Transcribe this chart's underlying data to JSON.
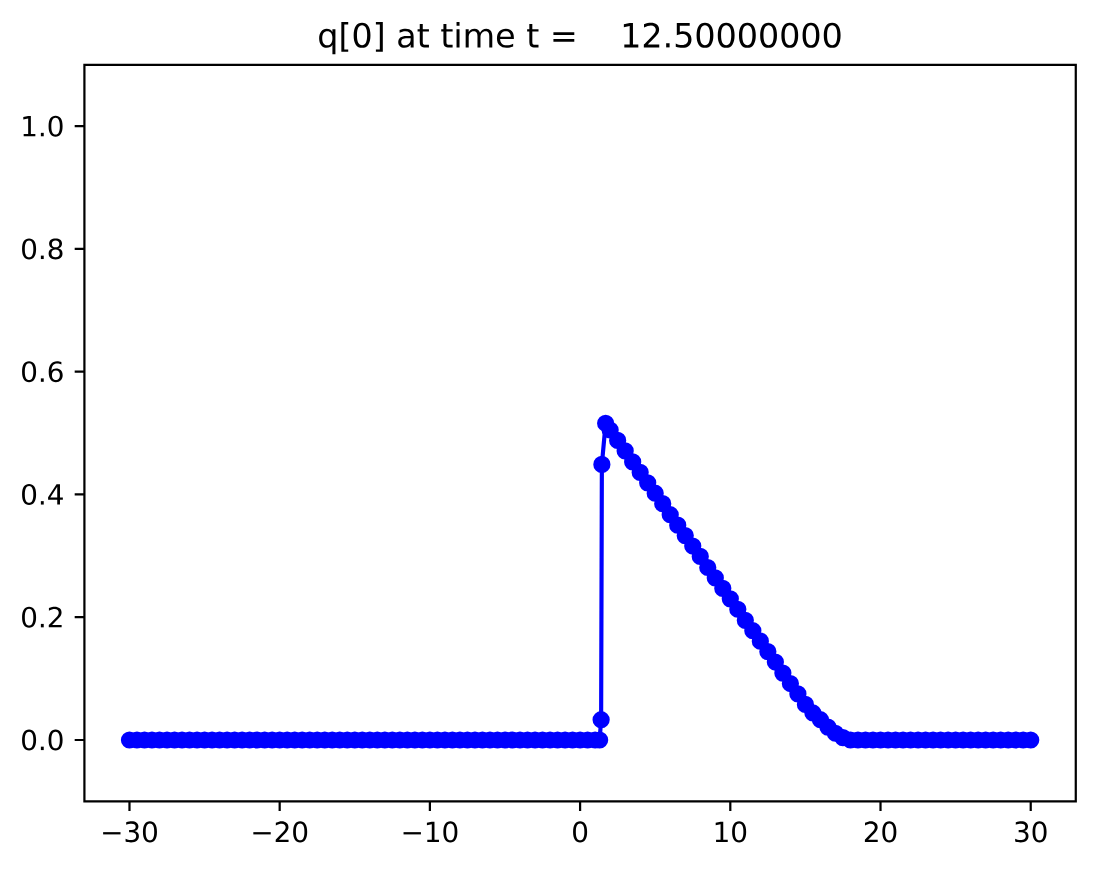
{
  "chart_data": {
    "type": "line",
    "title": "q[0] at time t =    12.50000000",
    "x": [
      -30,
      -29.5,
      -29,
      -28.5,
      -28,
      -27.5,
      -27,
      -26.5,
      -26,
      -25.5,
      -25,
      -24.5,
      -24,
      -23.5,
      -23,
      -22.5,
      -22,
      -21.5,
      -21,
      -20.5,
      -20,
      -19.5,
      -19,
      -18.5,
      -18,
      -17.5,
      -17,
      -16.5,
      -16,
      -15.5,
      -15,
      -14.5,
      -14,
      -13.5,
      -13,
      -12.5,
      -12,
      -11.5,
      -11,
      -10.5,
      -10,
      -9.5,
      -9,
      -8.5,
      -8,
      -7.5,
      -7,
      -6.5,
      -6,
      -5.5,
      -5,
      -4.5,
      -4,
      -3.5,
      -3,
      -2.5,
      -2,
      -1.5,
      -1,
      -0.5,
      0,
      0.5,
      1,
      1.3,
      1.4,
      1.45,
      1.7,
      2,
      2.5,
      3,
      3.5,
      4,
      4.5,
      5,
      5.5,
      6,
      6.5,
      7,
      7.5,
      8,
      8.5,
      9,
      9.5,
      10,
      10.5,
      11,
      11.5,
      12,
      12.5,
      13,
      13.5,
      14,
      14.5,
      15,
      15.5,
      16,
      16.5,
      17,
      17.5,
      18,
      18.5,
      19,
      19.5,
      20,
      20.5,
      21,
      21.5,
      22,
      22.5,
      23,
      23.5,
      24,
      24.5,
      25,
      25.5,
      26,
      26.5,
      27,
      27.5,
      28,
      28.5,
      29,
      29.5,
      30
    ],
    "series": [
      {
        "color": "#0000ff",
        "values": [
          0,
          0,
          0,
          0,
          0,
          0,
          0,
          0,
          0,
          0,
          0,
          0,
          0,
          0,
          0,
          0,
          0,
          0,
          0,
          0,
          0,
          0,
          0,
          0,
          0,
          0,
          0,
          0,
          0,
          0,
          0,
          0,
          0,
          0,
          0,
          0,
          0,
          0,
          0,
          0,
          0,
          0,
          0,
          0,
          0,
          0,
          0,
          0,
          0,
          0,
          0,
          0,
          0,
          0,
          0,
          0,
          0,
          0,
          0,
          0,
          0,
          0,
          0,
          0,
          0.033,
          0.449,
          0.516,
          0.505,
          0.488,
          0.471,
          0.453,
          0.436,
          0.419,
          0.402,
          0.385,
          0.367,
          0.35,
          0.333,
          0.316,
          0.299,
          0.281,
          0.264,
          0.247,
          0.23,
          0.213,
          0.195,
          0.178,
          0.161,
          0.144,
          0.127,
          0.109,
          0.092,
          0.075,
          0.058,
          0.044,
          0.033,
          0.021,
          0.011,
          0.004,
          0,
          0,
          0,
          0,
          0,
          0,
          0,
          0,
          0,
          0,
          0,
          0,
          0,
          0,
          0,
          0,
          0,
          0,
          0,
          0,
          0,
          0,
          0,
          0,
          0
        ]
      }
    ],
    "xlim": [
      -33,
      33
    ],
    "ylim": [
      -0.1,
      1.1
    ],
    "xticks": [
      {
        "value": -30,
        "label": "−30"
      },
      {
        "value": -20,
        "label": "−20"
      },
      {
        "value": -10,
        "label": "−10"
      },
      0,
      10,
      20,
      30
    ],
    "yticks": [
      {
        "value": 0,
        "label": "0.0"
      },
      {
        "value": 0.2,
        "label": "0.2"
      },
      {
        "value": 0.4,
        "label": "0.4"
      },
      {
        "value": 0.6,
        "label": "0.6"
      },
      {
        "value": 0.8,
        "label": "0.8"
      },
      {
        "value": 1,
        "label": "1.0"
      }
    ],
    "marker": "circle",
    "line_style": "solid"
  }
}
